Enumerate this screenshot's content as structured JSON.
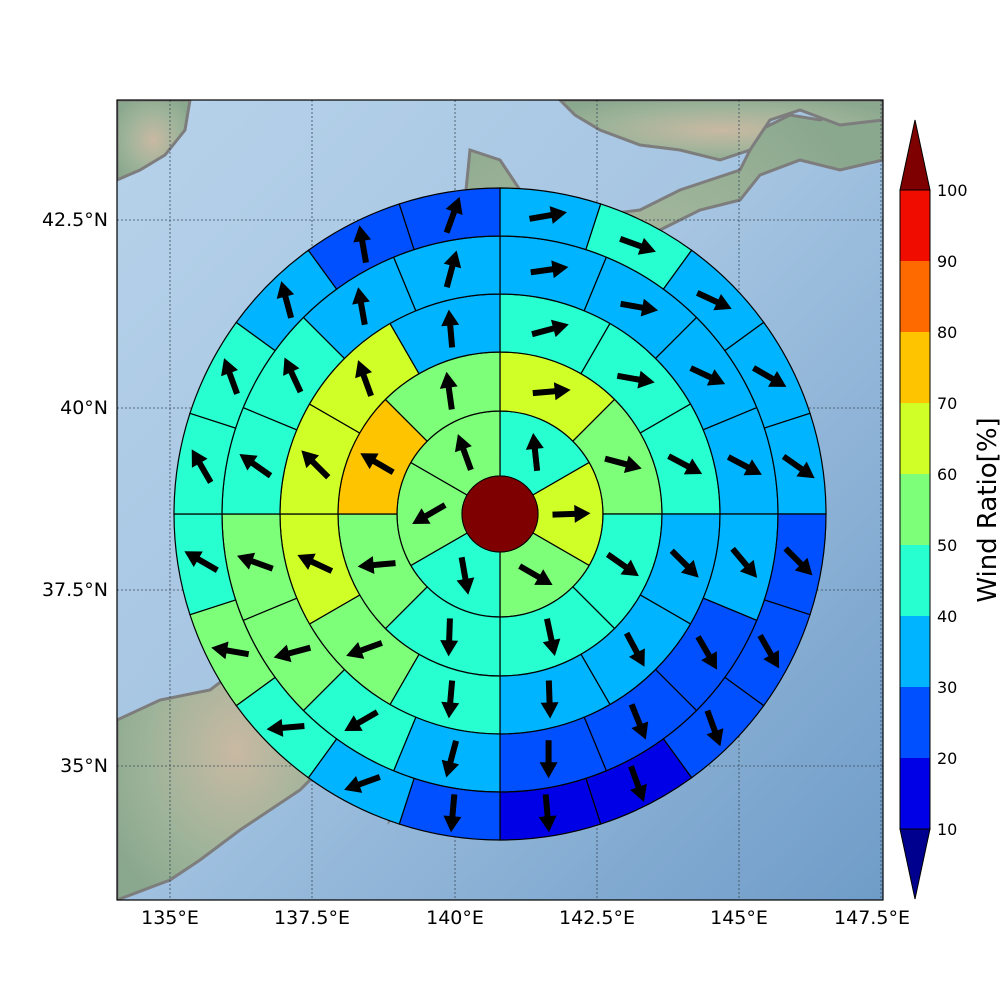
{
  "map": {
    "lon_ticks": [
      "135°E",
      "137.5°E",
      "140°E",
      "142.5°E",
      "145°E",
      "147.5°E"
    ],
    "lat_ticks": [
      "42.5°N",
      "40°N",
      "37.5°N",
      "35°N"
    ],
    "lon_range": [
      134.1,
      147.5
    ],
    "lat_range": [
      33.2,
      44.2
    ],
    "gridlines": true
  },
  "colorbar": {
    "title": "Wind Ratio[%]",
    "tick_labels": [
      "10",
      "20",
      "30",
      "40",
      "50",
      "60",
      "70",
      "80",
      "90",
      "100"
    ],
    "colors": [
      "#0000e6",
      "#0050ff",
      "#00b4ff",
      "#28ffd0",
      "#7dff7a",
      "#d0ff28",
      "#ffc400",
      "#ff6a00",
      "#f00d00",
      "#7f0000"
    ],
    "under_color": "#00008f",
    "over_color": "#7f0000"
  },
  "chart_data": {
    "type": "heatmap",
    "description_units": "polar sectors of wind ratio (%) with mean wind direction arrows",
    "center_value": 100,
    "rings": [
      {
        "ring": 1,
        "sectors": 6,
        "values": [
          42,
          65,
          55,
          42,
          55,
          55
        ],
        "arrow_dirs": [
          -6,
          88,
          120,
          170,
          -120,
          -20
        ]
      },
      {
        "ring": 2,
        "sectors": 8,
        "values": [
          65,
          55,
          42,
          45,
          45,
          55,
          75,
          55
        ],
        "arrow_dirs": [
          85,
          105,
          125,
          168,
          -178,
          -95,
          -60,
          -8
        ]
      },
      {
        "ring": 3,
        "sectors": 12,
        "values": [
          42,
          42,
          42,
          35,
          35,
          35,
          42,
          55,
          65,
          65,
          65,
          35
        ],
        "arrow_dirs": [
          75,
          100,
          118,
          135,
          152,
          178,
          -175,
          -110,
          -65,
          -45,
          -20,
          -5
        ]
      },
      {
        "ring": 4,
        "sectors": 16,
        "values": [
          35,
          35,
          35,
          35,
          30,
          25,
          25,
          25,
          35,
          42,
          50,
          50,
          42,
          42,
          35,
          35
        ],
        "arrow_dirs": [
          82,
          100,
          115,
          118,
          140,
          150,
          158,
          180,
          -165,
          -120,
          -105,
          -70,
          -55,
          -25,
          -10,
          15
        ]
      },
      {
        "ring": 5,
        "sectors": 20,
        "values": [
          35,
          42,
          35,
          35,
          35,
          25,
          25,
          25,
          15,
          15,
          25,
          35,
          42,
          50,
          42,
          42,
          42,
          35,
          25,
          25
        ],
        "arrow_dirs": [
          80,
          110,
          115,
          120,
          125,
          135,
          150,
          160,
          160,
          175,
          -175,
          -110,
          -95,
          -80,
          -60,
          -30,
          -20,
          -15,
          -10,
          20
        ]
      }
    ]
  }
}
